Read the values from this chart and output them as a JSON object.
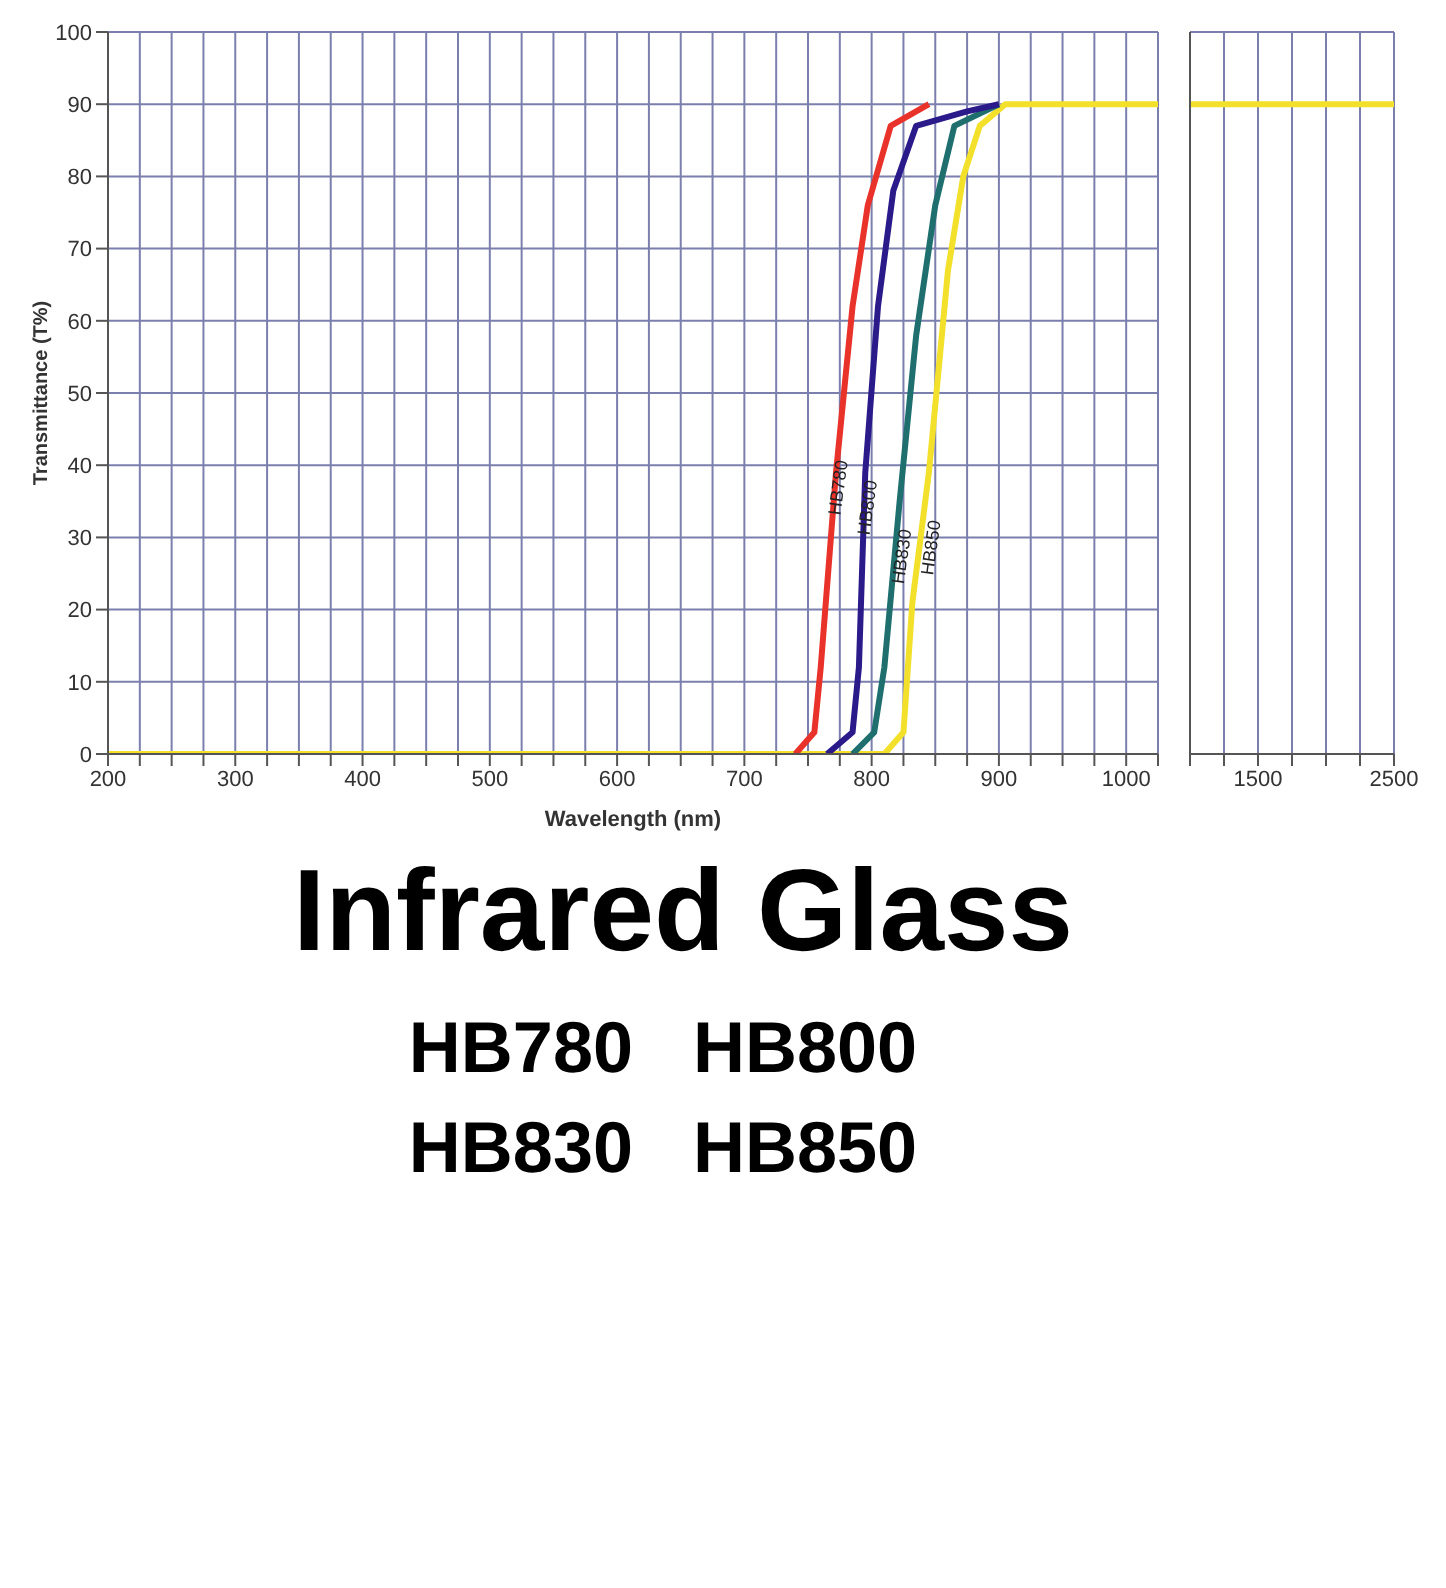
{
  "chart_data": [
    {
      "type": "line",
      "title": "Infrared Glass",
      "xlabel": "Wavelength (nm)",
      "ylabel": "Transmittance (T%)",
      "annotations": [
        "HB780   HB800",
        "HB830   HB850"
      ],
      "xlim": [
        200,
        1025
      ],
      "ylim": [
        0,
        100
      ],
      "xticks": [
        200,
        {
          "value": 225,
          "label": null
        },
        {
          "value": 250,
          "label": null
        },
        {
          "value": 275,
          "label": null
        },
        300,
        {
          "value": 325,
          "label": null
        },
        {
          "value": 350,
          "label": null
        },
        {
          "value": 375,
          "label": null
        },
        400,
        {
          "value": 425,
          "label": null
        },
        {
          "value": 450,
          "label": null
        },
        {
          "value": 475,
          "label": null
        },
        500,
        {
          "value": 525,
          "label": null
        },
        {
          "value": 550,
          "label": null
        },
        {
          "value": 575,
          "label": null
        },
        600,
        {
          "value": 625,
          "label": null
        },
        {
          "value": 650,
          "label": null
        },
        {
          "value": 675,
          "label": null
        },
        700,
        {
          "value": 725,
          "label": null
        },
        {
          "value": 750,
          "label": null
        },
        {
          "value": 775,
          "label": null
        },
        800,
        {
          "value": 825,
          "label": null
        },
        {
          "value": 850,
          "label": null
        },
        {
          "value": 875,
          "label": null
        },
        900,
        {
          "value": 925,
          "label": null
        },
        {
          "value": 950,
          "label": null
        },
        {
          "value": 975,
          "label": null
        },
        1000,
        {
          "value": 1025,
          "label": null
        }
      ],
      "yticks": [
        0,
        10,
        20,
        30,
        40,
        50,
        60,
        70,
        80,
        90,
        100
      ],
      "grid": true,
      "series": [
        {
          "name": "HB780",
          "color": "#e8322a",
          "x": [
            740,
            755,
            760,
            772,
            785,
            797,
            815,
            845
          ],
          "values": [
            0,
            3,
            12,
            39,
            62,
            76,
            87,
            90
          ]
        },
        {
          "name": "HB800",
          "color": "#2a1a8a",
          "x": [
            765,
            785,
            790,
            795,
            805,
            817,
            835,
            875,
            900
          ],
          "values": [
            0,
            3,
            12,
            39,
            62,
            78,
            87,
            89,
            90
          ]
        },
        {
          "name": "HB830",
          "color": "#1f6f6f",
          "x": [
            785,
            802,
            810,
            822,
            835,
            850,
            865,
            900
          ],
          "values": [
            0,
            3,
            12,
            35,
            58,
            76,
            87,
            90
          ]
        },
        {
          "name": "HB850",
          "color": "#f2e02a",
          "x": [
            200,
            810,
            825,
            832,
            845,
            860,
            872,
            885,
            905,
            1025
          ],
          "values": [
            0,
            0,
            3,
            21,
            39,
            67,
            80,
            87,
            90,
            90
          ]
        }
      ]
    },
    {
      "type": "line",
      "xlim": [
        1000,
        2500
      ],
      "ylim": [
        0,
        100
      ],
      "xticks": [
        {
          "value": 1000,
          "label": null
        },
        {
          "value": 1250,
          "label": null
        },
        1500,
        {
          "value": 1750,
          "label": null
        },
        {
          "value": 2000,
          "label": null
        },
        {
          "value": 2250,
          "label": null
        },
        2500
      ],
      "yticks": [
        0,
        10,
        20,
        30,
        40,
        50,
        60,
        70,
        80,
        90,
        100
      ],
      "grid": true,
      "tick_labels": "x",
      "series": [
        {
          "color": "#f2e02a",
          "x": [
            1000,
            2500
          ],
          "values": [
            90,
            90
          ]
        }
      ]
    }
  ]
}
